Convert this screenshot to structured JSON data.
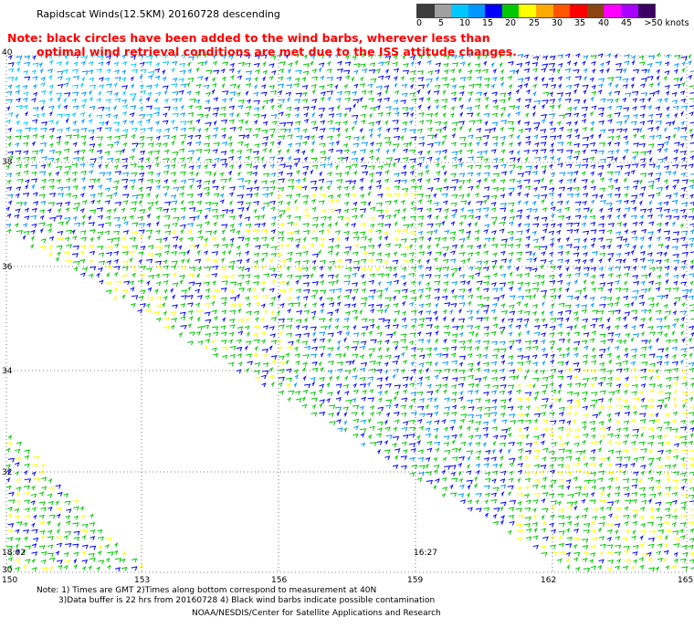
{
  "header": {
    "title": "Rapidscat Winds(12.5KM) 20160728 descending",
    "note_line1": "Note: black circles have been added to the wind barbs, wherever less than",
    "note_line2": "optimal wind retrieval conditions are met due to the ISS attitude changes."
  },
  "color_scale": {
    "colors": [
      "#3c3c3c",
      "#a0a0a0",
      "#00c8ff",
      "#0096ff",
      "#0000ff",
      "#00c800",
      "#ffff00",
      "#ffaa00",
      "#ff5500",
      "#ff0000",
      "#8b4513",
      "#ff00ff",
      "#aa00ff",
      "#3c0064"
    ],
    "labels": [
      "0",
      "5",
      "10",
      "15",
      "20",
      "25",
      "30",
      "35",
      "40",
      "45",
      ">50 knots"
    ]
  },
  "map": {
    "latitudes": [
      "40",
      "38",
      "36",
      "34",
      "32",
      "30"
    ],
    "longitudes": [
      "150",
      "153",
      "156",
      "159",
      "162",
      "165"
    ],
    "times": [
      "18:02",
      "16:27"
    ]
  },
  "footer": {
    "line1": "Note: 1) Times are GMT 2)Times along bottom correspond to measurement at 40N",
    "line2": "3)Data buffer is 22 hrs from 20160728 4) Black wind barbs indicate possible contamination",
    "line3": "NOAA/NESDIS/Center for Satellite Applications and Research"
  }
}
